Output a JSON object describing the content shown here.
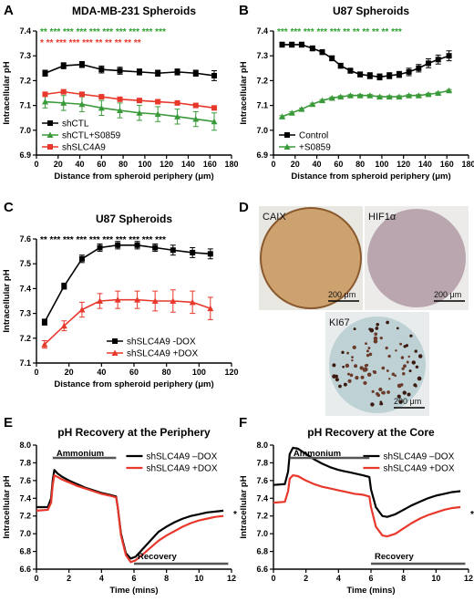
{
  "panels": {
    "A": {
      "letter": "A"
    },
    "B": {
      "letter": "B"
    },
    "C": {
      "letter": "C"
    },
    "D": {
      "letter": "D"
    },
    "E": {
      "letter": "E"
    },
    "F": {
      "letter": "F"
    }
  },
  "images": {
    "caix": {
      "label": "CAIX",
      "scale": "200 μm",
      "color": "#c9955a"
    },
    "hif1a": {
      "label": "HIF1α",
      "scale": "200 μm",
      "color": "#a88f9a"
    },
    "ki67": {
      "label": "KI67",
      "scale": "200 μm",
      "color": "#b9cfd2"
    }
  },
  "chart_data": [
    {
      "id": "A",
      "type": "line",
      "title": "MDA-MB-231 Spheroids",
      "xlabel": "Distance from spheroid periphery (μm)",
      "ylabel": "Intracellular pH",
      "xlim": [
        0,
        180
      ],
      "ylim": [
        6.9,
        7.4
      ],
      "xticks": [
        "0",
        "20",
        "40",
        "60",
        "80",
        "100",
        "120",
        "140",
        "160",
        "180"
      ],
      "yticks": [
        "6.9",
        "7.0",
        "7.1",
        "7.2",
        "7.3",
        "7.4"
      ],
      "legend_position": "bottom-left",
      "x": [
        8,
        25,
        42,
        60,
        77,
        95,
        112,
        130,
        147,
        164
      ],
      "series": [
        {
          "name": "shCTL",
          "color": "#000000",
          "marker": "square",
          "values": [
            7.23,
            7.26,
            7.265,
            7.245,
            7.24,
            7.235,
            7.23,
            7.235,
            7.23,
            7.22
          ],
          "errors": [
            0.012,
            0.012,
            0.012,
            0.014,
            0.014,
            0.012,
            0.012,
            0.012,
            0.012,
            0.02
          ]
        },
        {
          "name": "shCTL+S0859",
          "color": "#3a9a3a",
          "marker": "triangle",
          "values": [
            7.115,
            7.11,
            7.105,
            7.09,
            7.08,
            7.07,
            7.065,
            7.055,
            7.045,
            7.035
          ],
          "errors": [
            0.025,
            0.03,
            0.03,
            0.03,
            0.03,
            0.03,
            0.03,
            0.03,
            0.03,
            0.035
          ]
        },
        {
          "name": "shSLC4A9",
          "color": "#e8382b",
          "marker": "square",
          "values": [
            7.145,
            7.155,
            7.145,
            7.135,
            7.125,
            7.12,
            7.115,
            7.11,
            7.1,
            7.09
          ],
          "errors": [
            0.008,
            0.008,
            0.008,
            0.008,
            0.008,
            0.008,
            0.008,
            0.008,
            0.008,
            0.008
          ]
        }
      ],
      "annotations": [
        {
          "text": "** *** *** *** *** *** *** *** *** ***",
          "color": "#2ca02c",
          "row": 1
        },
        {
          "text": "* ** *** *** *** ** ** ** ** **",
          "color": "#e8382b",
          "row": 2
        }
      ]
    },
    {
      "id": "B",
      "type": "line",
      "title": "U87 Spheroids",
      "xlabel": "Distance from spheroid periphery (μm)",
      "ylabel": "Intracellular pH",
      "xlim": [
        0,
        180
      ],
      "ylim": [
        6.9,
        7.4
      ],
      "xticks": [
        "0",
        "20",
        "40",
        "60",
        "80",
        "100",
        "120",
        "140",
        "160",
        "180"
      ],
      "yticks": [
        "6.9",
        "7.0",
        "7.1",
        "7.2",
        "7.3",
        "7.4"
      ],
      "legend_position": "bottom-left",
      "x": [
        8,
        17,
        26,
        36,
        45,
        54,
        62,
        71,
        80,
        89,
        98,
        107,
        116,
        125,
        134,
        143,
        152,
        162
      ],
      "series": [
        {
          "name": "Control",
          "color": "#000000",
          "marker": "square",
          "values": [
            7.345,
            7.345,
            7.345,
            7.33,
            7.315,
            7.29,
            7.26,
            7.24,
            7.225,
            7.22,
            7.215,
            7.22,
            7.225,
            7.235,
            7.25,
            7.27,
            7.285,
            7.3
          ],
          "errors": [
            0.01,
            0.01,
            0.01,
            0.01,
            0.01,
            0.01,
            0.01,
            0.01,
            0.01,
            0.012,
            0.012,
            0.012,
            0.012,
            0.015,
            0.015,
            0.018,
            0.018,
            0.02
          ]
        },
        {
          "name": "+S0859",
          "color": "#3a9a3a",
          "marker": "triangle",
          "values": [
            7.055,
            7.07,
            7.085,
            7.105,
            7.12,
            7.13,
            7.135,
            7.14,
            7.14,
            7.14,
            7.135,
            7.135,
            7.135,
            7.14,
            7.14,
            7.145,
            7.15,
            7.16
          ],
          "errors": [
            0.004,
            0.004,
            0.004,
            0.004,
            0.004,
            0.004,
            0.004,
            0.004,
            0.004,
            0.004,
            0.004,
            0.004,
            0.004,
            0.004,
            0.004,
            0.004,
            0.004,
            0.004
          ]
        }
      ],
      "annotations": [
        {
          "text": "*** *** *** *** *** ** ** ** ** ** ***",
          "color": "#2ca02c",
          "row": 1
        }
      ]
    },
    {
      "id": "C",
      "type": "line",
      "title": "U87 Spheroids",
      "xlabel": "Distance from spheroid periphery (μm)",
      "ylabel": "Intracellular pH",
      "xlim": [
        0,
        120
      ],
      "ylim": [
        7.1,
        7.6
      ],
      "xticks": [
        "0",
        "20",
        "40",
        "60",
        "80",
        "100",
        "120"
      ],
      "yticks": [
        "7.1",
        "7.2",
        "7.3",
        "7.4",
        "7.5",
        "7.6"
      ],
      "legend_position": "bottom-right",
      "x": [
        5,
        17,
        28,
        39,
        50,
        62,
        73,
        84,
        96,
        107
      ],
      "series": [
        {
          "name": "shSLC4A9 -DOX",
          "color": "#000000",
          "marker": "square",
          "values": [
            7.265,
            7.41,
            7.52,
            7.565,
            7.575,
            7.575,
            7.565,
            7.555,
            7.545,
            7.54
          ],
          "errors": [
            0.012,
            0.012,
            0.015,
            0.015,
            0.015,
            0.015,
            0.015,
            0.02,
            0.02,
            0.02
          ]
        },
        {
          "name": "shSLC4A9 +DOX",
          "color": "#e8382b",
          "marker": "triangle",
          "values": [
            7.175,
            7.25,
            7.315,
            7.35,
            7.355,
            7.355,
            7.35,
            7.35,
            7.345,
            7.32
          ],
          "errors": [
            0.015,
            0.02,
            0.03,
            0.03,
            0.035,
            0.035,
            0.04,
            0.045,
            0.045,
            0.045
          ]
        }
      ],
      "annotations": [
        {
          "text": "** *** *** *** *** *** *** *** *** ***",
          "color": "#000000",
          "row": 1
        }
      ]
    },
    {
      "id": "E",
      "type": "line",
      "title": "pH Recovery at the Periphery",
      "xlabel": "Time (mins)",
      "ylabel": "Intracellular pH",
      "xlim": [
        0,
        12
      ],
      "ylim": [
        6.6,
        8.0
      ],
      "xticks": [
        "0",
        "2",
        "4",
        "6",
        "8",
        "10",
        "12"
      ],
      "yticks": [
        "6.6",
        "6.8",
        "7.0",
        "7.2",
        "7.4",
        "7.6",
        "7.8",
        "8.0"
      ],
      "legend_position": "top-right",
      "x": [
        0,
        0.7,
        0.9,
        1.0,
        1.1,
        1.3,
        1.6,
        2.0,
        2.5,
        3.0,
        3.5,
        4.0,
        4.5,
        4.9,
        5.0,
        5.2,
        5.5,
        5.8,
        6.1,
        6.5,
        7.0,
        7.5,
        8.0,
        8.5,
        9.0,
        9.5,
        10.0,
        10.5,
        11.0,
        11.5
      ],
      "series": [
        {
          "name": "shSLC4A9 –DOX",
          "color": "#000000",
          "values": [
            7.3,
            7.3,
            7.4,
            7.6,
            7.72,
            7.68,
            7.64,
            7.6,
            7.56,
            7.52,
            7.49,
            7.46,
            7.44,
            7.42,
            7.3,
            7.0,
            6.78,
            6.72,
            6.74,
            6.82,
            6.92,
            7.02,
            7.08,
            7.13,
            7.17,
            7.2,
            7.22,
            7.24,
            7.25,
            7.26
          ]
        },
        {
          "name": "shSLC4A9 +DOX",
          "color": "#e8382b",
          "values": [
            7.26,
            7.27,
            7.35,
            7.55,
            7.66,
            7.64,
            7.61,
            7.58,
            7.54,
            7.51,
            7.48,
            7.45,
            7.43,
            7.41,
            7.3,
            6.98,
            6.76,
            6.68,
            6.7,
            6.76,
            6.84,
            6.92,
            6.98,
            7.03,
            7.08,
            7.12,
            7.15,
            7.17,
            7.19,
            7.2
          ]
        }
      ],
      "annotations": [
        {
          "text": "Ammonium",
          "x_range": [
            1.0,
            4.9
          ],
          "level": "top"
        },
        {
          "text": "Recovery",
          "x_range": [
            6.0,
            11.8
          ],
          "level": "bottom"
        },
        {
          "text": "*",
          "color": "#000000"
        }
      ]
    },
    {
      "id": "F",
      "type": "line",
      "title": "pH Recovery at the Core",
      "xlabel": "Time (mins)",
      "ylabel": "Intracellular pH",
      "xlim": [
        0,
        12
      ],
      "ylim": [
        6.6,
        8.0
      ],
      "xticks": [
        "0",
        "2",
        "4",
        "6",
        "8",
        "10",
        "12"
      ],
      "yticks": [
        "6.6",
        "6.8",
        "7.0",
        "7.2",
        "7.4",
        "7.6",
        "7.8",
        "8.0"
      ],
      "legend_position": "top-right",
      "x": [
        0,
        0.7,
        0.9,
        1.0,
        1.2,
        1.5,
        2.0,
        2.5,
        3.0,
        3.5,
        4.0,
        4.5,
        5.0,
        5.5,
        5.9,
        6.0,
        6.3,
        6.7,
        7.0,
        7.5,
        8.0,
        8.5,
        9.0,
        9.5,
        10.0,
        10.5,
        11.0,
        11.5
      ],
      "series": [
        {
          "name": "shSLC4A9 –DOX",
          "color": "#000000",
          "values": [
            7.55,
            7.56,
            7.7,
            7.9,
            7.97,
            7.96,
            7.9,
            7.84,
            7.79,
            7.75,
            7.72,
            7.7,
            7.68,
            7.66,
            7.64,
            7.5,
            7.3,
            7.2,
            7.19,
            7.22,
            7.27,
            7.32,
            7.36,
            7.4,
            7.43,
            7.45,
            7.47,
            7.48
          ]
        },
        {
          "name": "shSLC4A9 +DOX",
          "color": "#e8382b",
          "values": [
            7.35,
            7.36,
            7.48,
            7.62,
            7.66,
            7.65,
            7.6,
            7.56,
            7.53,
            7.51,
            7.49,
            7.47,
            7.45,
            7.44,
            7.42,
            7.3,
            7.08,
            6.98,
            6.97,
            7.0,
            7.06,
            7.12,
            7.17,
            7.21,
            7.24,
            7.27,
            7.29,
            7.3
          ]
        }
      ],
      "annotations": [
        {
          "text": "Ammonium",
          "x_range": [
            1.0,
            5.9
          ],
          "level": "top"
        },
        {
          "text": "Recovery",
          "x_range": [
            6.0,
            11.8
          ],
          "level": "bottom"
        },
        {
          "text": "***",
          "color": "#000000"
        }
      ]
    }
  ]
}
